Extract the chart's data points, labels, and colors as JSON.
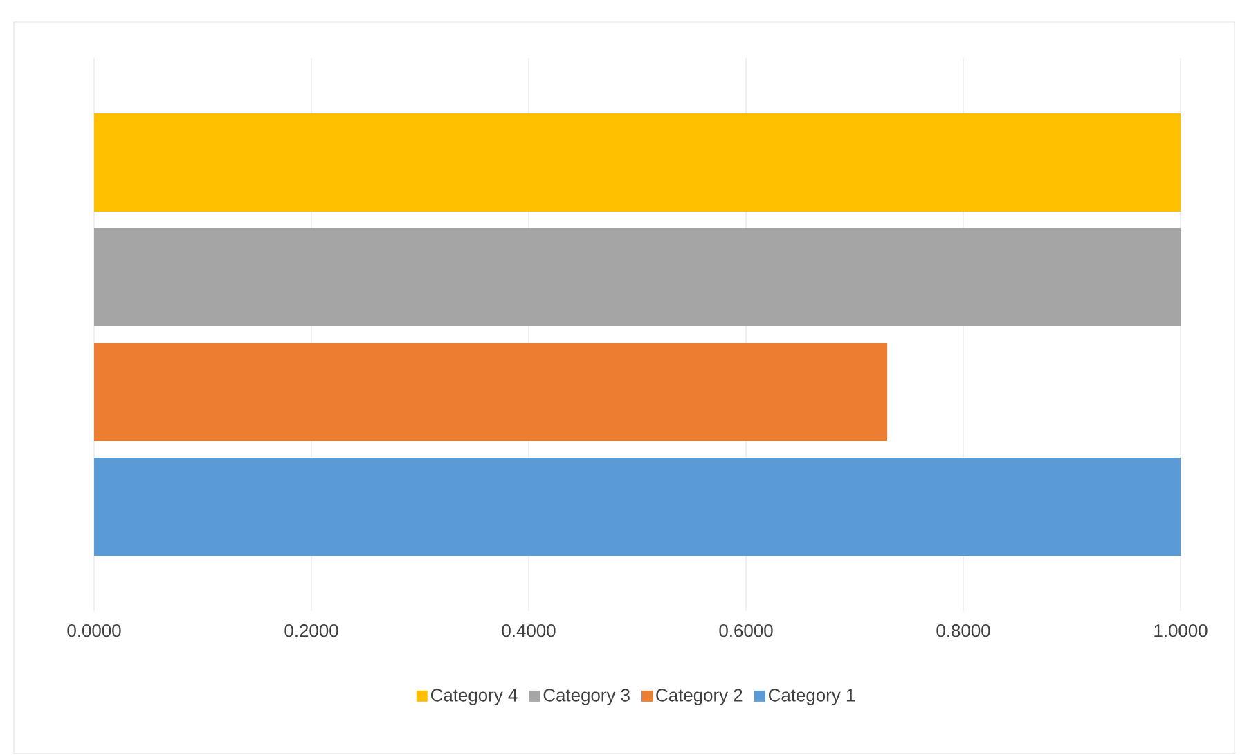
{
  "chart_data": {
    "type": "bar",
    "orientation": "horizontal",
    "categories": [
      null
    ],
    "series": [
      {
        "name": "Category 1",
        "color": "#5b9bd5",
        "values": [
          1.0
        ]
      },
      {
        "name": "Category 2",
        "color": "#ed7d31",
        "values": [
          0.73
        ]
      },
      {
        "name": "Category 3",
        "color": "#a5a5a5",
        "values": [
          1.0
        ]
      },
      {
        "name": "Category 4",
        "color": "#ffc000",
        "values": [
          1.0
        ]
      }
    ],
    "xlim": [
      0,
      1.0
    ],
    "xticks": [
      {
        "value": 0,
        "label": "0.0000"
      },
      {
        "value": 0.2,
        "label": "0.2000"
      },
      {
        "value": 0.4,
        "label": "0.4000"
      },
      {
        "value": 0.6,
        "label": "0.6000"
      },
      {
        "value": 0.8,
        "label": "0.8000"
      },
      {
        "value": 1.0,
        "label": "1.0000"
      }
    ],
    "grid": "x",
    "legend": "bottom"
  }
}
